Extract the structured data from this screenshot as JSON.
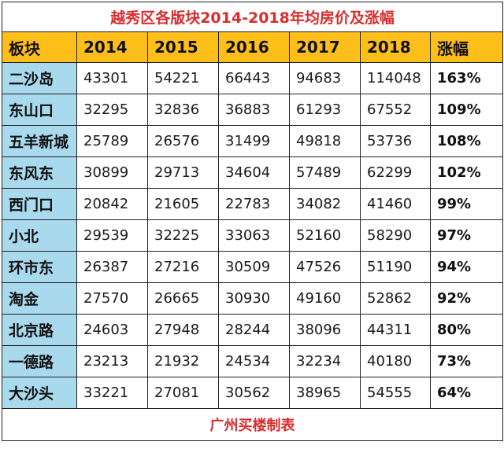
{
  "title": "越秀区各版块2014-2018年均房价及涨幅",
  "footer": "广州买楼制表",
  "colors": {
    "header_bg": "#ffbf1a",
    "name_col_bg": "#a9d9ec",
    "title_text": "#d92c2c",
    "footer_text": "#d92c2c"
  },
  "chart_data": {
    "type": "table",
    "title": "越秀区各版块2014-2018年均房价及涨幅",
    "columns": [
      "板块",
      "2014",
      "2015",
      "2016",
      "2017",
      "2018",
      "涨幅"
    ],
    "rows": [
      [
        "二沙岛",
        "43301",
        "54221",
        "66443",
        "94683",
        "114048",
        "163%"
      ],
      [
        "东山口",
        "32295",
        "32836",
        "36883",
        "61293",
        "67552",
        "109%"
      ],
      [
        "五羊新城",
        "25789",
        "26576",
        "31499",
        "49818",
        "53736",
        "108%"
      ],
      [
        "东风东",
        "30899",
        "29713",
        "34604",
        "57489",
        "62299",
        "102%"
      ],
      [
        "西门口",
        "20842",
        "21605",
        "22783",
        "34082",
        "41460",
        "99%"
      ],
      [
        "小北",
        "29539",
        "32225",
        "33063",
        "52160",
        "58290",
        "97%"
      ],
      [
        "环市东",
        "26387",
        "27216",
        "30509",
        "47526",
        "51190",
        "94%"
      ],
      [
        "淘金",
        "27570",
        "26665",
        "30930",
        "49160",
        "52862",
        "92%"
      ],
      [
        "北京路",
        "24603",
        "27948",
        "28244",
        "38096",
        "44311",
        "80%"
      ],
      [
        "一德路",
        "23213",
        "21932",
        "24534",
        "32234",
        "40180",
        "73%"
      ],
      [
        "大沙头",
        "33221",
        "27081",
        "30562",
        "38965",
        "54555",
        "64%"
      ]
    ]
  }
}
